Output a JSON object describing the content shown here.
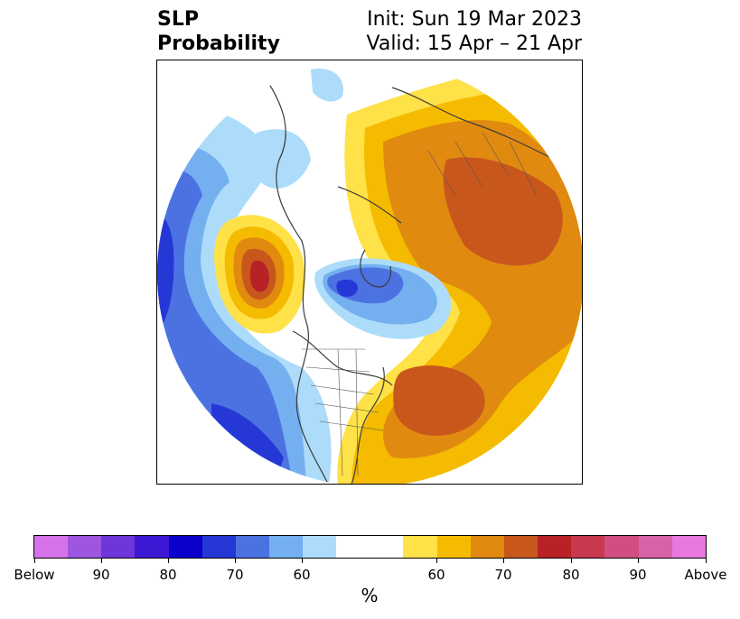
{
  "title": {
    "left_line1": "SLP",
    "left_line2": "Probability",
    "right_line1": "Init: Sun 19 Mar 2023",
    "right_line2": "Valid: 15 Apr – 21 Apr"
  },
  "colorbar": {
    "colors": [
      "#d672e8",
      "#9e55e0",
      "#6e35d9",
      "#3d18d4",
      "#0b00cc",
      "#2538d6",
      "#4c72e2",
      "#74b0f0",
      "#acdcfa",
      "#ffffff",
      "#ffe148",
      "#f5bb00",
      "#e08a10",
      "#c8571c",
      "#b82126",
      "#c83950",
      "#d04e82",
      "#d862a8",
      "#e678de"
    ],
    "tick_labels": [
      "Below",
      "90",
      "80",
      "70",
      "60",
      "60",
      "70",
      "80",
      "90",
      "Above"
    ],
    "units": "%"
  },
  "map": {
    "region": "Northern Hemisphere polar projection",
    "blue_color_light": "#acdcfa",
    "blue_color_mid": "#74b0f0",
    "blue_color_dark": "#4c72e2",
    "blue_color_deep": "#2538d6",
    "warm_color_yellow": "#ffe148",
    "warm_color_gold": "#f5bb00",
    "warm_color_orange": "#e08a10",
    "warm_color_rust": "#c8571c",
    "warm_color_red": "#b82126"
  }
}
